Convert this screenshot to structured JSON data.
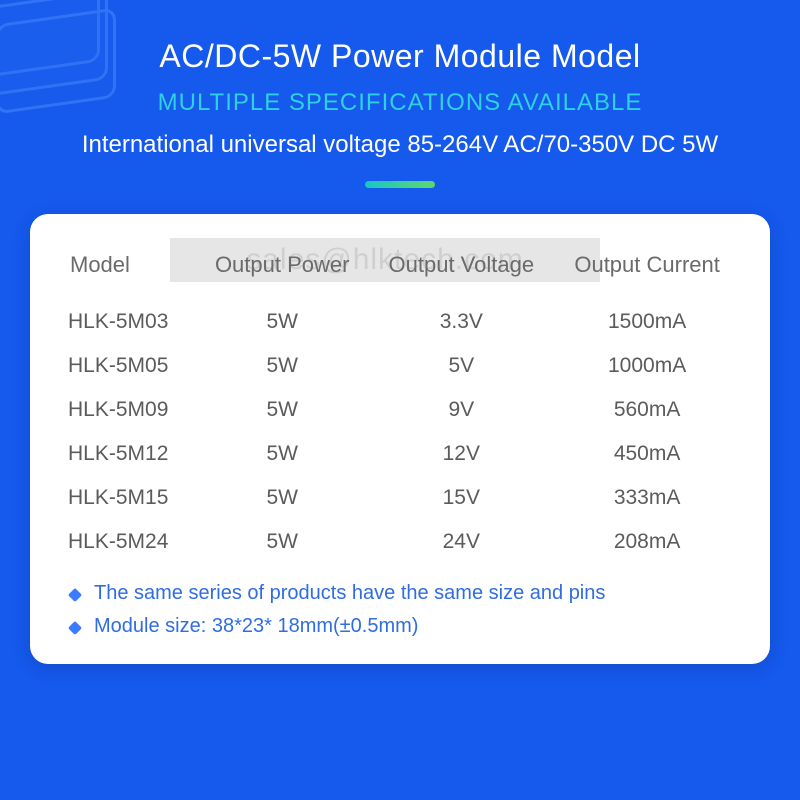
{
  "colors": {
    "page_bg": "#1559ed",
    "title_color": "#ffffff",
    "subtitle_color": "#2fd0e0",
    "desc_color": "#ffffff",
    "divider_gradient_from": "#17c6c9",
    "divider_gradient_to": "#5fd86a",
    "card_bg": "#ffffff",
    "th_color": "#6a6a6a",
    "td_color": "#5b5b5b",
    "note_color": "#2f6de0",
    "bullet_color": "#3a7bff",
    "watermark_bg": "#e6e6e6",
    "watermark_text": "#cfcfcf",
    "deco_stroke": "#5a9aff"
  },
  "typography": {
    "title_fontsize": 32,
    "subtitle_fontsize": 24,
    "desc_fontsize": 24,
    "th_fontsize": 22,
    "td_fontsize": 21,
    "note_fontsize": 20
  },
  "header": {
    "title": "AC/DC-5W Power Module Model",
    "subtitle": "MULTIPLE SPECIFICATIONS AVAILABLE",
    "description": "International universal voltage 85-264V AC/70-350V DC 5W"
  },
  "watermark_text": "sales@hlktech.com",
  "table": {
    "columns": [
      "Model",
      "Output Power",
      "Output Voltage",
      "Output Current"
    ],
    "rows": [
      [
        "HLK-5M03",
        "5W",
        "3.3V",
        "1500mA"
      ],
      [
        "HLK-5M05",
        "5W",
        "5V",
        "1000mA"
      ],
      [
        "HLK-5M09",
        "5W",
        "9V",
        "560mA"
      ],
      [
        "HLK-5M12",
        "5W",
        "12V",
        "450mA"
      ],
      [
        "HLK-5M15",
        "5W",
        "15V",
        "333mA"
      ],
      [
        "HLK-5M24",
        "5W",
        "24V",
        "208mA"
      ]
    ]
  },
  "notes": [
    "The same series of products have the same size and pins",
    "Module size: 38*23* 18mm(±0.5mm)"
  ]
}
